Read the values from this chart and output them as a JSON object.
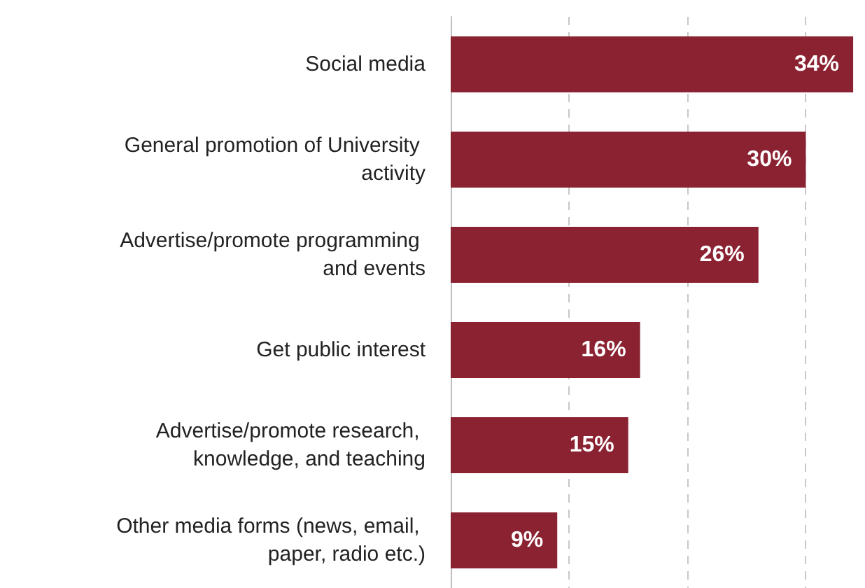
{
  "chart_data": {
    "type": "bar",
    "orientation": "horizontal",
    "categories": [
      "Social media",
      "General promotion of University activity",
      "Advertise/promote programming and events",
      "Get public interest",
      "Advertise/promote research, knowledge, and teaching",
      "Other media forms (news, email, paper, radio etc.)"
    ],
    "values": [
      34,
      30,
      26,
      16,
      15,
      9
    ],
    "value_labels": [
      "34%",
      "30%",
      "26%",
      "16%",
      "15%",
      "9%"
    ],
    "color": "#8b2232",
    "xticks": [
      {
        "value": 0,
        "label": null
      },
      {
        "value": 10,
        "label": null
      },
      {
        "value": 20,
        "label": null
      },
      {
        "value": 30,
        "label": null
      }
    ],
    "tick_labels": "y",
    "grid": "x"
  }
}
